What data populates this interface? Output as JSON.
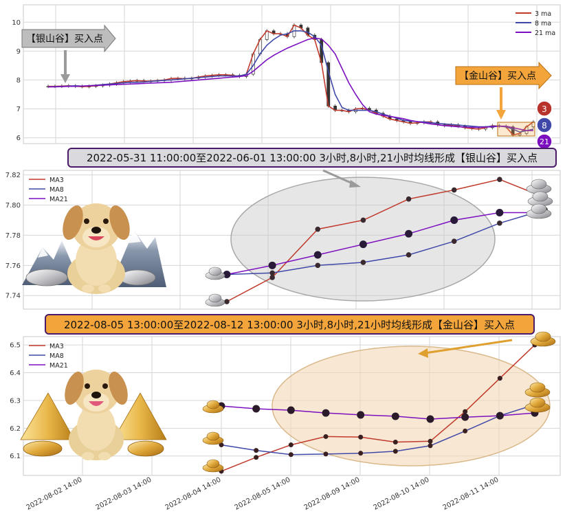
{
  "colors": {
    "ma3": "#c0392b",
    "ma8": "#3f48a8",
    "ma21": "#7b0fbf",
    "silver_banner_bg": "#d9d9de",
    "gold_banner_bg": "#f3a53c",
    "silver_ellipse": "#c8c8c8",
    "gold_ellipse": "#f3d9b5",
    "grid": "#d6d6d6"
  },
  "chart_data": [
    {
      "type": "line",
      "panel": "overview",
      "yticks": [
        6,
        7,
        8,
        9,
        10
      ],
      "ylim": [
        5.8,
        10.6
      ],
      "x_count": 100,
      "legend": [
        "3 ma",
        "8 ma",
        "21 ma"
      ],
      "legend_position": "top-right",
      "series": [
        {
          "name": "3 ma",
          "values": [
            7.78,
            7.78,
            7.79,
            7.8,
            7.78,
            7.77,
            7.78,
            7.8,
            7.82,
            7.86,
            7.9,
            7.94,
            7.96,
            7.98,
            7.96,
            7.96,
            7.98,
            8.0,
            8.05,
            8.06,
            8.04,
            8.06,
            8.1,
            8.14,
            8.16,
            8.18,
            8.18,
            8.16,
            8.12,
            8.2,
            8.9,
            9.4,
            9.7,
            9.6,
            9.6,
            9.5,
            9.9,
            9.8,
            9.55,
            9.4,
            8.6,
            7.1,
            6.95,
            6.95,
            6.9,
            7.0,
            7.02,
            6.96,
            6.85,
            6.75,
            6.65,
            6.6,
            6.55,
            6.5,
            6.52,
            6.55,
            6.55,
            6.45,
            6.42,
            6.45,
            6.4,
            6.35,
            6.32,
            6.3,
            6.35,
            6.42,
            6.4,
            6.38,
            6.1,
            6.15,
            6.38,
            6.55
          ]
        },
        {
          "name": "8 ma",
          "values": [
            7.76,
            7.77,
            7.78,
            7.79,
            7.8,
            7.79,
            7.8,
            7.82,
            7.84,
            7.86,
            7.88,
            7.9,
            7.92,
            7.92,
            7.93,
            7.95,
            7.97,
            7.99,
            8.0,
            8.02,
            8.04,
            8.06,
            8.08,
            8.1,
            8.12,
            8.14,
            8.14,
            8.14,
            8.14,
            8.2,
            8.5,
            8.9,
            9.2,
            9.4,
            9.55,
            9.6,
            9.7,
            9.7,
            9.65,
            9.5,
            9.2,
            8.3,
            7.5,
            7.05,
            6.95,
            6.95,
            6.95,
            6.95,
            6.9,
            6.82,
            6.75,
            6.68,
            6.6,
            6.58,
            6.56,
            6.55,
            6.52,
            6.5,
            6.48,
            6.46,
            6.44,
            6.42,
            6.4,
            6.38,
            6.38,
            6.4,
            6.4,
            6.38,
            6.3,
            6.2,
            6.25,
            6.3
          ]
        },
        {
          "name": "21 ma",
          "values": [
            7.76,
            7.76,
            7.77,
            7.78,
            7.78,
            7.79,
            7.8,
            7.81,
            7.82,
            7.83,
            7.84,
            7.85,
            7.86,
            7.87,
            7.88,
            7.89,
            7.9,
            7.91,
            7.92,
            7.94,
            7.96,
            7.98,
            8.0,
            8.02,
            8.04,
            8.06,
            8.08,
            8.1,
            8.12,
            8.15,
            8.3,
            8.5,
            8.7,
            8.85,
            8.98,
            9.1,
            9.2,
            9.3,
            9.4,
            9.45,
            9.42,
            9.2,
            8.9,
            8.4,
            7.9,
            7.5,
            7.15,
            6.9,
            6.82,
            6.78,
            6.74,
            6.7,
            6.66,
            6.6,
            6.56,
            6.52,
            6.48,
            6.45,
            6.42,
            6.4,
            6.38,
            6.37,
            6.36,
            6.36,
            6.37,
            6.38,
            6.4,
            6.4,
            6.35,
            6.3,
            6.25,
            6.25
          ]
        }
      ]
    },
    {
      "type": "line",
      "panel": "silver-valley",
      "yticks": [
        7.74,
        7.76,
        7.78,
        7.8,
        7.82
      ],
      "ylim": [
        7.731,
        7.823
      ],
      "legend": [
        "MA3",
        "MA8",
        "MA21"
      ],
      "legend_position": "top-left",
      "series": [
        {
          "name": "MA3",
          "values": [
            7.736,
            7.752,
            7.784,
            7.79,
            7.804,
            7.81,
            7.817,
            7.805
          ]
        },
        {
          "name": "MA8",
          "values": [
            7.754,
            7.755,
            7.76,
            7.762,
            7.767,
            7.776,
            7.788,
            7.797
          ]
        },
        {
          "name": "MA21",
          "values": [
            7.754,
            7.76,
            7.767,
            7.774,
            7.781,
            7.79,
            7.795,
            7.795
          ]
        }
      ]
    },
    {
      "type": "line",
      "panel": "gold-valley",
      "yticks": [
        6.1,
        6.2,
        6.3,
        6.4,
        6.5
      ],
      "ylim": [
        6.03,
        6.53
      ],
      "legend": [
        "MA3",
        "MA8",
        "MA21"
      ],
      "legend_position": "top-left",
      "series": [
        {
          "name": "MA3",
          "values": [
            6.045,
            6.095,
            6.14,
            6.17,
            6.168,
            6.15,
            6.153,
            6.26,
            6.38,
            6.5
          ]
        },
        {
          "name": "MA8",
          "values": [
            6.14,
            6.12,
            6.105,
            6.107,
            6.11,
            6.117,
            6.137,
            6.19,
            6.245,
            6.285
          ]
        },
        {
          "name": "MA21",
          "values": [
            6.28,
            6.27,
            6.265,
            6.255,
            6.248,
            6.243,
            6.233,
            6.24,
            6.245,
            6.255
          ]
        }
      ],
      "x_tick_labels": [
        "2022-08-02 14:00",
        "2022-08-03 14:00",
        "2022-08-04 14:00",
        "2022-08-05 14:00",
        "2022-08-09 14:00",
        "2022-08-10 14:00",
        "2022-08-11 14:00"
      ]
    }
  ],
  "annotations": {
    "silver_arrow_label": "【银山谷】买入点",
    "gold_arrow_label": "【金山谷】买入点",
    "silver_banner": "2022-05-31 11:00:00至2022-06-01 13:00:00 3小时,8小时,21小时均线形成【银山谷】买入点",
    "gold_banner": "2022-08-05 13:00:00至2022-08-12 13:00:00 3小时,8小时,21小时均线形成【金山谷】买入点",
    "badges": [
      "3",
      "8",
      "21"
    ]
  }
}
